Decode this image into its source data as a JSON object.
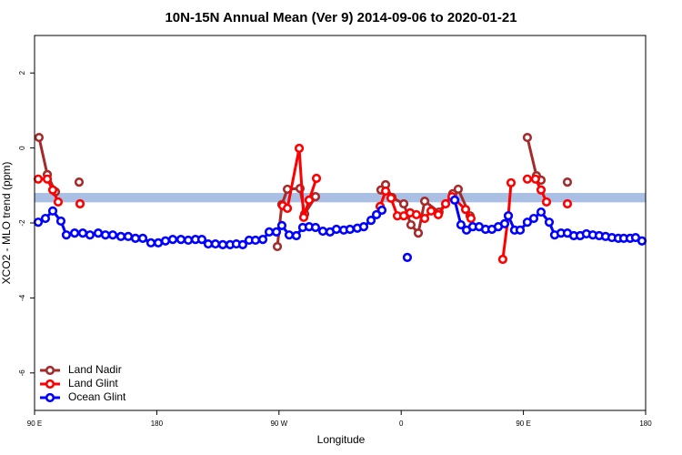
{
  "chart_data": {
    "type": "line",
    "title": "10N-15N Annual Mean (Ver 9)   2014-09-06 to 2020-01-21",
    "xlabel": "Longitude",
    "ylabel": "XCO2 - MLO trend (ppm)",
    "xlim": [
      90,
      540
    ],
    "ylim": [
      -7,
      3
    ],
    "xticks": [
      {
        "value": 90,
        "label": "90 E"
      },
      180,
      {
        "value": 270,
        "label": "90 W"
      },
      {
        "value": 360,
        "label": "0"
      },
      {
        "value": 450,
        "label": "90 E"
      },
      {
        "value": 540,
        "label": "180"
      }
    ],
    "yticks": [
      -6,
      -4,
      -2,
      0,
      2
    ],
    "band": [
      -1.45,
      -1.2
    ],
    "band_color": "#a9bfe3",
    "legend": "bottom-left",
    "series": [
      {
        "name": "Land Nadir",
        "color": "#a52a2a",
        "x": [
          93.3,
          99.4,
          105.4,
          null,
          122.8,
          null,
          268.8,
          272.1,
          276.2,
          285.5,
          288.9,
          296.9,
          null,
          345.1,
          348.5,
          353.2,
          361.9,
          367.2,
          372.6,
          377.3,
          387.9,
          398.0,
          402.0,
          410.7,
          null,
          452.9,
          459.6,
          463.0,
          null,
          482.4
        ],
        "values": [
          0.28,
          -0.71,
          -1.17,
          null,
          -0.91,
          null,
          -2.63,
          -1.51,
          -1.1,
          -1.08,
          -1.76,
          -1.3,
          null,
          -1.12,
          -0.98,
          -1.32,
          -1.49,
          -2.05,
          -2.27,
          -1.42,
          -1.71,
          -1.22,
          -1.1,
          -1.81,
          null,
          0.28,
          -0.74,
          -0.86,
          null,
          -0.91
        ]
      },
      {
        "name": "Land Glint",
        "color": "#ff0000",
        "x": [
          92.7,
          99.4,
          103.4,
          107.4,
          null,
          123.5,
          null,
          272.8,
          276.2,
          284.9,
          288.2,
          292.2,
          297.6,
          null,
          344.5,
          348.5,
          352.5,
          357.2,
          361.9,
          366.6,
          371.2,
          377.3,
          382.0,
          387.3,
          392.7,
          397.4,
          407.4,
          411.4,
          null,
          434.8,
          438.9,
          440.9,
          null,
          452.9,
          458.9,
          463.0,
          467.0,
          null,
          482.4
        ],
        "values": [
          -0.83,
          -0.83,
          -1.12,
          -1.44,
          null,
          -1.49,
          null,
          -1.54,
          -1.61,
          -0.01,
          -1.85,
          -1.39,
          -0.81,
          null,
          -1.56,
          -1.15,
          -1.34,
          -1.81,
          -1.81,
          -1.73,
          -1.78,
          -1.88,
          -1.68,
          -1.78,
          -1.49,
          -1.3,
          -1.64,
          -1.88,
          null,
          -2.97,
          -1.81,
          -0.93,
          null,
          -0.83,
          -0.83,
          -1.12,
          -1.44,
          null,
          -1.49
        ]
      },
      {
        "name": "Ocean Glint",
        "color": "#0000ff",
        "x": [
          92.7,
          98.0,
          103.4,
          109.4,
          113.4,
          119.5,
          125.5,
          130.8,
          136.9,
          142.2,
          147.6,
          153.6,
          159.0,
          164.3,
          169.7,
          175.7,
          181.1,
          186.4,
          191.8,
          197.8,
          203.2,
          208.5,
          213.2,
          217.9,
          223.2,
          228.6,
          234.0,
          238.6,
          243.3,
          248.0,
          252.7,
          258.1,
          262.8,
          268.1,
          272.1,
          277.5,
          282.8,
          287.5,
          292.2,
          296.9,
          302.3,
          307.6,
          312.3,
          317.7,
          322.3,
          327.7,
          332.4,
          337.8,
          341.8,
          345.8,
          null,
          364.5,
          null,
          399.4,
          404.0,
          408.1,
          412.7,
          417.4,
          422.1,
          426.8,
          431.5,
          436.2,
          438.9,
          443.5,
          447.6,
          452.9,
          457.6,
          463.0,
          469.0,
          473.0,
          477.7,
          482.4,
          487.1,
          491.8,
          496.4,
          501.1,
          505.8,
          510.5,
          515.2,
          519.9,
          523.9,
          528.6,
          532.6,
          537.3
        ],
        "values": [
          -1.98,
          -1.88,
          -1.68,
          -1.95,
          -2.32,
          -2.27,
          -2.27,
          -2.32,
          -2.27,
          -2.32,
          -2.32,
          -2.36,
          -2.36,
          -2.41,
          -2.41,
          -2.53,
          -2.53,
          -2.48,
          -2.44,
          -2.44,
          -2.46,
          -2.44,
          -2.44,
          -2.56,
          -2.56,
          -2.58,
          -2.58,
          -2.56,
          -2.58,
          -2.46,
          -2.46,
          -2.44,
          -2.24,
          -2.24,
          -2.07,
          -2.32,
          -2.34,
          -2.12,
          -2.1,
          -2.12,
          -2.22,
          -2.24,
          -2.17,
          -2.19,
          -2.17,
          -2.14,
          -2.1,
          -1.93,
          -1.78,
          -1.66,
          null,
          -2.92,
          null,
          -1.39,
          -2.05,
          -2.19,
          -2.1,
          -2.1,
          -2.17,
          -2.17,
          -2.1,
          -2.02,
          -1.81,
          -2.19,
          -2.19,
          -1.98,
          -1.88,
          -1.71,
          -1.98,
          -2.32,
          -2.27,
          -2.27,
          -2.34,
          -2.34,
          -2.29,
          -2.32,
          -2.34,
          -2.36,
          -2.39,
          -2.41,
          -2.41,
          -2.41,
          -2.39,
          -2.48
        ]
      }
    ]
  }
}
